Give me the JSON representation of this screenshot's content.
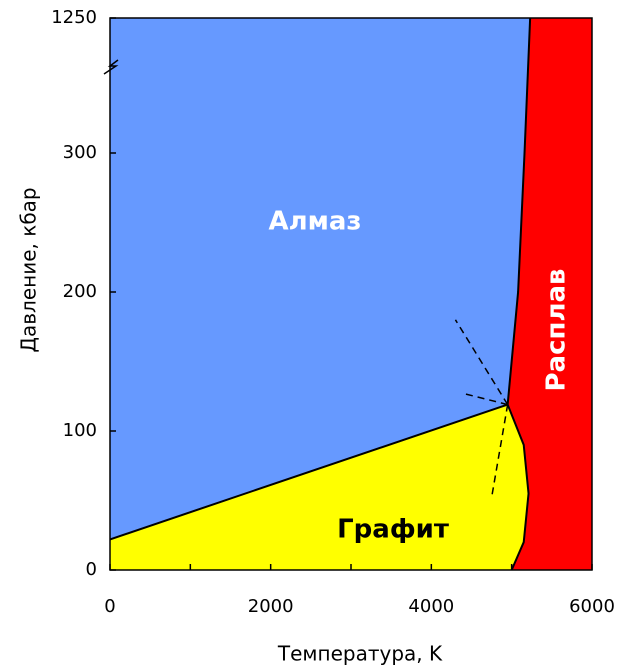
{
  "chart_data": {
    "type": "phase-diagram",
    "x_label": "Температура, K",
    "y_label": "Давление, кбар",
    "xlim": [
      0,
      6000
    ],
    "ylim": [
      0,
      1250
    ],
    "ybreak": 360,
    "xticks": [
      0,
      2000,
      4000,
      6000
    ],
    "xminorticks": [
      1000,
      3000,
      5000
    ],
    "yticks": [
      0,
      100,
      200,
      300,
      1250
    ],
    "regions": [
      {
        "label": "Алмаз",
        "color": "#6699ff",
        "label_color": "#ffffff"
      },
      {
        "label": "Графит",
        "color": "#ffff00",
        "label_color": "#000000"
      },
      {
        "label": "Расплав",
        "color": "#ff0000",
        "label_color": "#ffffff"
      }
    ],
    "boundaries": [
      {
        "x": [
          0,
          4950
        ],
        "values": [
          22,
          119
        ],
        "dashed": false
      },
      {
        "x": [
          4950,
          5150,
          5210,
          5150,
          5000
        ],
        "values": [
          119,
          90,
          55,
          20,
          0
        ],
        "dashed": false
      },
      {
        "x": [
          4950,
          5080,
          5160,
          5230
        ],
        "values": [
          119,
          200,
          300,
          1250
        ],
        "dashed": false
      },
      {
        "x": [
          4950,
          4300
        ],
        "values": [
          119,
          180
        ],
        "dashed": true
      },
      {
        "x": [
          4950,
          4400
        ],
        "values": [
          119,
          127
        ],
        "dashed": true
      },
      {
        "x": [
          4950,
          4750
        ],
        "values": [
          119,
          52
        ],
        "dashed": true
      }
    ]
  }
}
